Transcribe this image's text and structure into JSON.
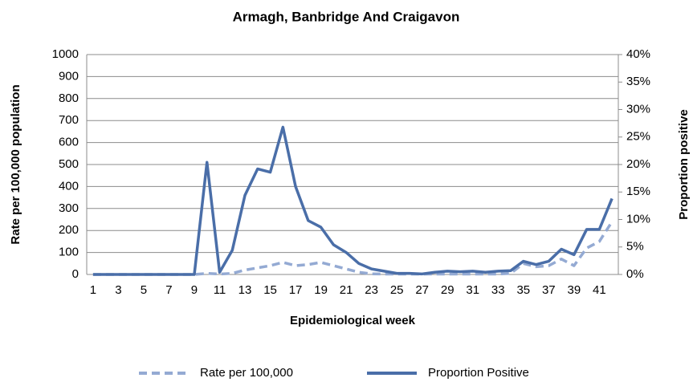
{
  "chart_data": {
    "type": "line",
    "title": "Armagh, Banbridge And Craigavon",
    "x_label": "Epidemiological week",
    "y_label": "Rate per 100,000 population",
    "y2_label": "Proportion positive",
    "categories": [
      "1",
      null,
      "3",
      null,
      "5",
      null,
      "7",
      null,
      "9",
      null,
      "11",
      null,
      "13",
      null,
      "15",
      null,
      "17",
      null,
      "19",
      null,
      "21",
      null,
      "23",
      null,
      "25",
      null,
      "27",
      null,
      "29",
      null,
      "31",
      null,
      "33",
      null,
      "35",
      null,
      "37",
      null,
      "39",
      null,
      "41",
      null
    ],
    "series": [
      {
        "name": "Rate per 100,000",
        "color": "#94aad3",
        "dashed": true,
        "values": [
          0,
          0,
          0,
          0,
          0,
          0,
          0,
          0,
          0,
          5,
          2,
          5,
          20,
          30,
          40,
          55,
          40,
          45,
          55,
          40,
          25,
          10,
          3,
          2,
          2,
          2,
          2,
          2,
          2,
          2,
          2,
          2,
          2,
          5,
          50,
          35,
          40,
          70,
          40,
          120,
          150,
          240
        ]
      },
      {
        "name": "Proportion Positive",
        "color": "#4a6ea8",
        "dashed": false,
        "axis": "y2",
        "values": [
          0,
          0,
          0,
          0,
          0,
          0,
          0,
          0,
          0,
          20.4,
          0.4,
          4.4,
          14.4,
          19.2,
          18.6,
          26.8,
          16,
          9.8,
          8.6,
          5.4,
          4,
          2,
          1,
          0.6,
          0.2,
          0.2,
          0.1,
          0.4,
          0.6,
          0.5,
          0.6,
          0.4,
          0.6,
          0.7,
          2.4,
          1.8,
          2.4,
          4.6,
          3.6,
          8.2,
          8.2,
          13.8
        ]
      }
    ],
    "ylim": [
      0,
      1000
    ],
    "yticks": [
      0,
      100,
      200,
      300,
      400,
      500,
      600,
      700,
      800,
      900,
      1000
    ],
    "y2lim": [
      0,
      40
    ],
    "y2ticks": [
      {
        "value": 0,
        "label": "0%"
      },
      {
        "value": 5,
        "label": "5%"
      },
      {
        "value": 10,
        "label": "10%"
      },
      {
        "value": 15,
        "label": "15%"
      },
      {
        "value": 20,
        "label": "20%"
      },
      {
        "value": 25,
        "label": "25%"
      },
      {
        "value": 30,
        "label": "30%"
      },
      {
        "value": 35,
        "label": "35%"
      },
      {
        "value": 40,
        "label": "40%"
      }
    ],
    "grid": true,
    "legend": "bottom"
  }
}
